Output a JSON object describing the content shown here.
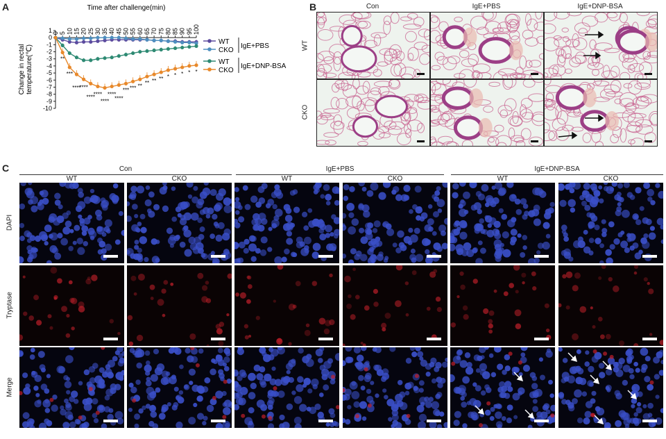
{
  "panels": {
    "a": "A",
    "b": "B",
    "c": "C"
  },
  "chart_data": {
    "type": "line",
    "title": "Time after challenge(min)",
    "ylabel": "Change in rectal temperature(℃)",
    "x": [
      0,
      5,
      10,
      15,
      20,
      25,
      30,
      35,
      40,
      45,
      50,
      55,
      60,
      65,
      70,
      75,
      80,
      85,
      90,
      95,
      100
    ],
    "ylim": [
      -10,
      1
    ],
    "yticks": [
      1,
      0,
      -1,
      -2,
      -3,
      -4,
      -5,
      -6,
      -7,
      -8,
      -9,
      -10
    ],
    "series": [
      {
        "name": "WT",
        "group": "IgE+PBS",
        "color": "#5b4a9e",
        "values": [
          0,
          -0.3,
          -0.6,
          -0.7,
          -0.6,
          -0.6,
          -0.5,
          -0.4,
          -0.3,
          -0.3,
          -0.3,
          -0.3,
          -0.3,
          -0.3,
          -0.4,
          -0.4,
          -0.5,
          -0.5,
          -0.6,
          -0.6,
          -0.6
        ]
      },
      {
        "name": "CKO",
        "group": "IgE+PBS",
        "color": "#4e8fbf",
        "values": [
          0,
          -0.1,
          -0.2,
          -0.2,
          -0.1,
          -0.1,
          0,
          0,
          0,
          0,
          -0.1,
          -0.2,
          -0.2,
          -0.3,
          -0.4,
          -0.4,
          -0.5,
          -0.6,
          -0.7,
          -0.7,
          -0.8
        ]
      },
      {
        "name": "WT",
        "group": "IgE+DNP-BSA",
        "color": "#2e8a73",
        "values": [
          0,
          -1.1,
          -2.2,
          -2.8,
          -3.2,
          -3.2,
          -3.0,
          -2.9,
          -2.8,
          -2.6,
          -2.4,
          -2.2,
          -2.0,
          -1.9,
          -1.8,
          -1.7,
          -1.6,
          -1.5,
          -1.4,
          -1.3,
          -1.2
        ]
      },
      {
        "name": "CKO",
        "group": "IgE+DNP-BSA",
        "color": "#e8892b",
        "values": [
          0,
          -2.1,
          -4.2,
          -5.2,
          -5.9,
          -6.5,
          -6.9,
          -7.1,
          -6.9,
          -6.7,
          -6.5,
          -6.2,
          -5.9,
          -5.5,
          -5.2,
          -4.9,
          -4.6,
          -4.4,
          -4.2,
          -4.0,
          -3.9
        ]
      }
    ],
    "group_labels": [
      "IgE+PBS",
      "IgE+DNP-BSA"
    ],
    "significance": [
      "",
      "**",
      "***",
      "****",
      "****",
      "****",
      "****",
      "****",
      "****",
      "****",
      "***",
      "***",
      "**",
      "**",
      "**",
      "**",
      "*",
      "*",
      "*",
      "*",
      "*"
    ]
  },
  "panel_b": {
    "cols": [
      "Con",
      "IgE+PBS",
      "IgE+DNP-BSA"
    ],
    "rows": [
      "WT",
      "CKO"
    ]
  },
  "panel_c": {
    "groups": [
      "Con",
      "IgE+PBS",
      "IgE+DNP-BSA"
    ],
    "cols": [
      "WT",
      "CKO",
      "WT",
      "CKO",
      "WT",
      "CKO"
    ],
    "rows": [
      "DAPI",
      "Tryptase",
      "Merge"
    ]
  },
  "colors": {
    "dapi": "#3a4fc8",
    "tryptase": "#c0202a",
    "he_pink": "#c65a8a",
    "he_bg": "#eef3ee"
  }
}
